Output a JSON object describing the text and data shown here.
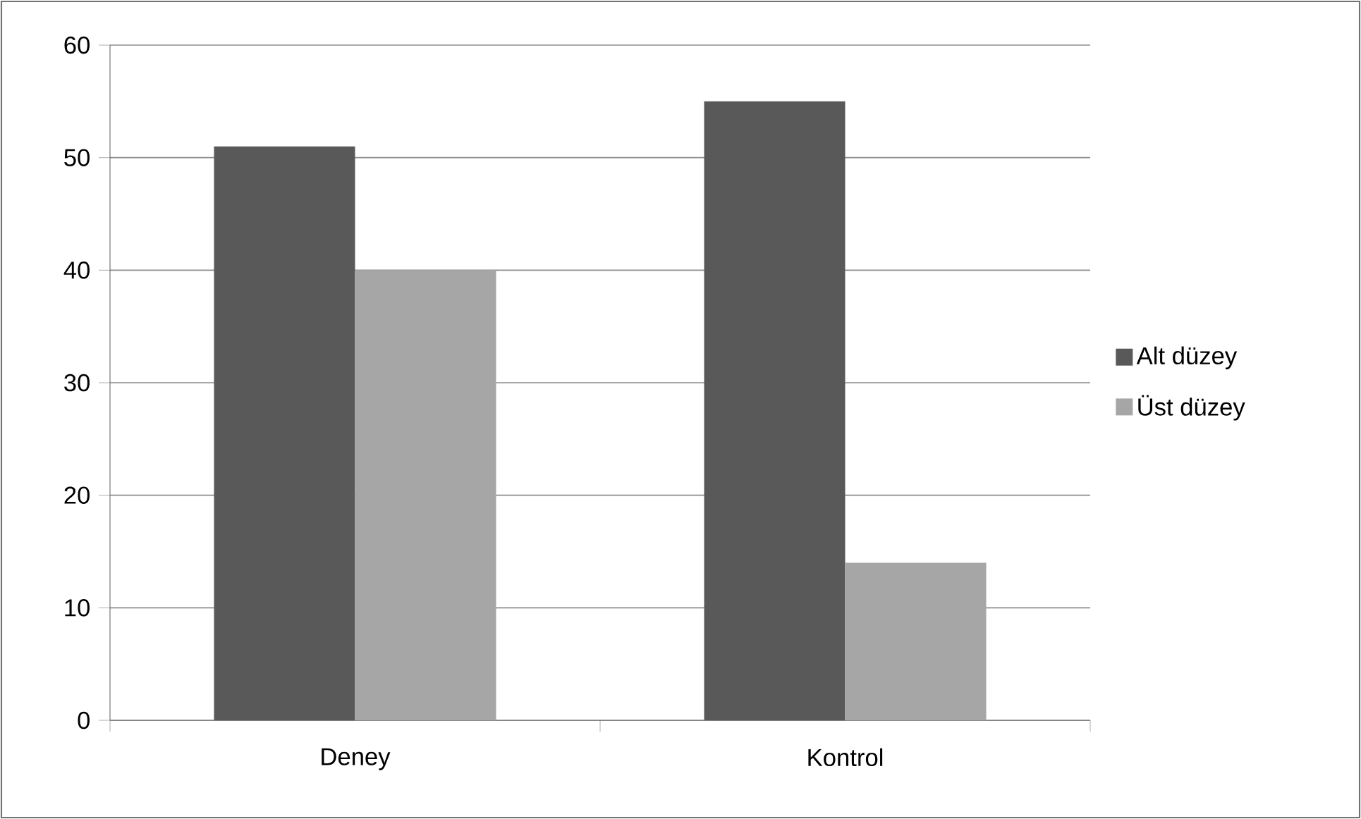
{
  "chart_data": {
    "type": "bar",
    "categories": [
      "Deney",
      "Kontrol"
    ],
    "series": [
      {
        "name": "Alt düzey",
        "color": "#595959",
        "values": [
          51,
          55
        ]
      },
      {
        "name": "Üst düzey",
        "color": "#a6a6a6",
        "values": [
          40,
          14
        ]
      }
    ],
    "ylim": [
      0,
      60
    ],
    "yticks": [
      0,
      10,
      20,
      30,
      40,
      50,
      60
    ],
    "grid": "y",
    "legend": "right"
  }
}
